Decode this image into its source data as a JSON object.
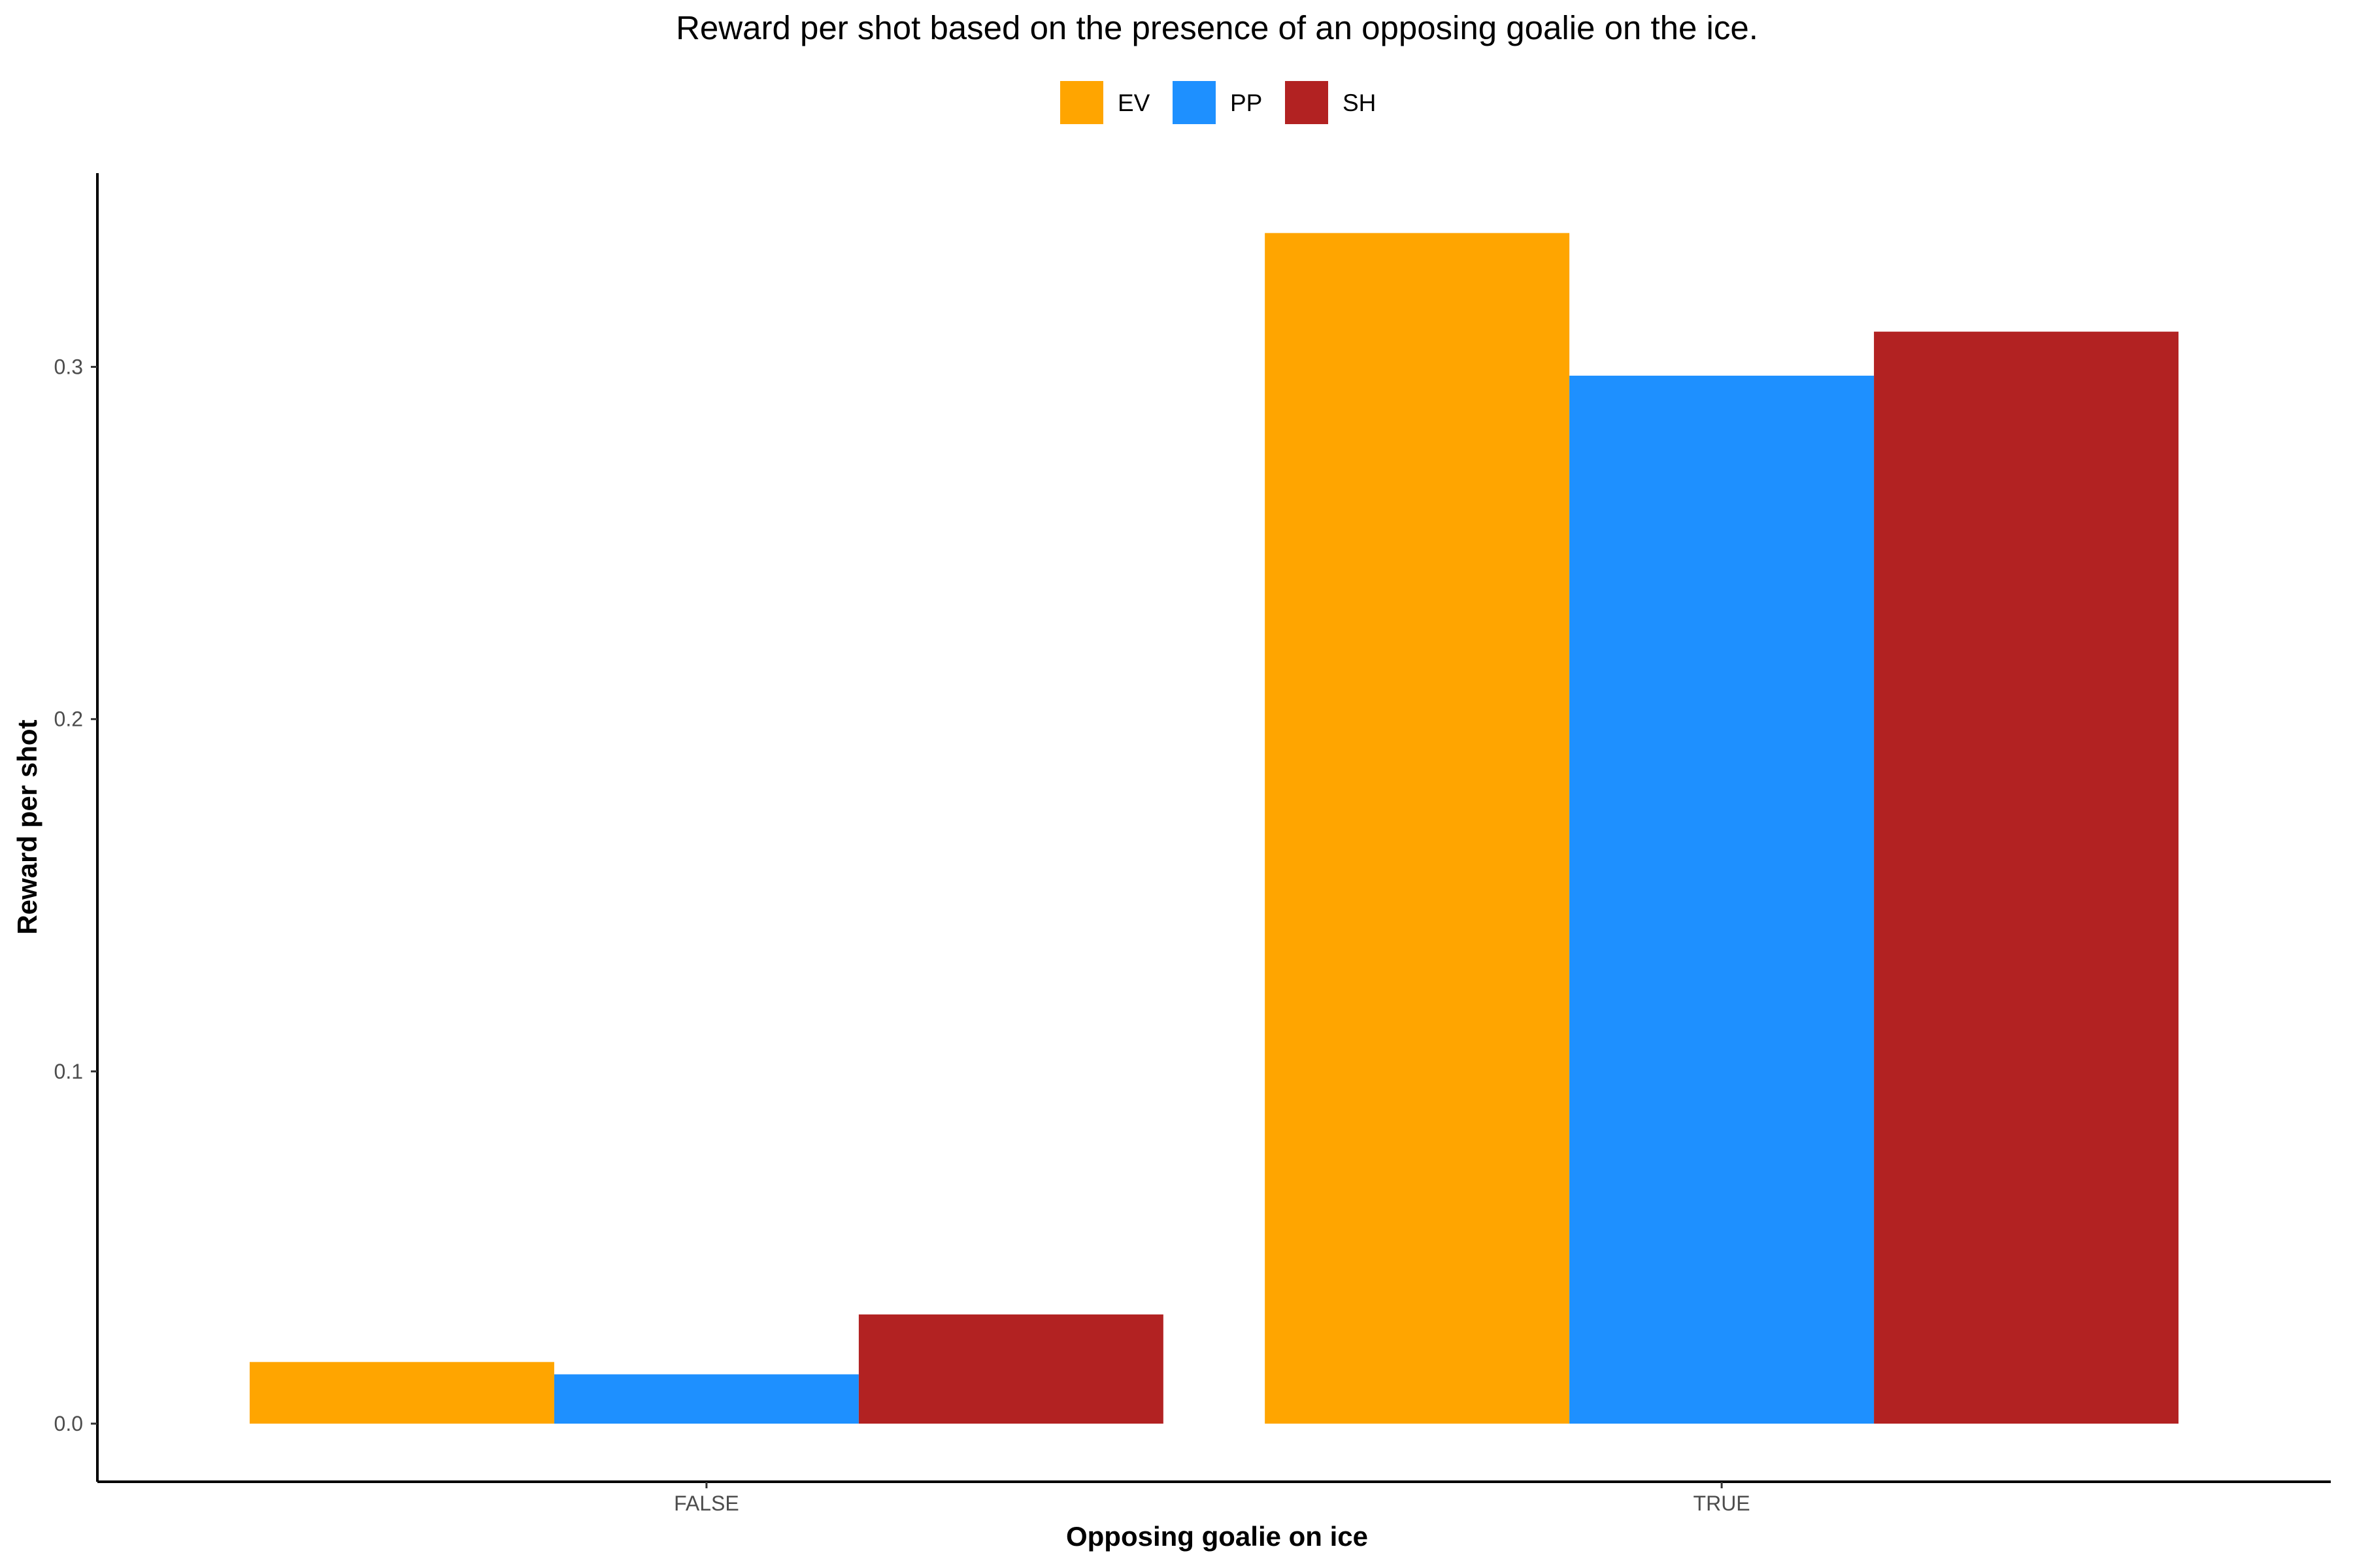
{
  "chart_data": {
    "type": "bar",
    "title": "Reward per shot based on the presence of an opposing goalie on the ice.",
    "xlabel": "Opposing goalie on ice",
    "ylabel": "Reward per shot",
    "categories": [
      "FALSE",
      "TRUE"
    ],
    "series": [
      {
        "name": "EV",
        "color": "#FFA500",
        "values": [
          0.0175,
          0.338
        ]
      },
      {
        "name": "PP",
        "color": "#1E90FF",
        "values": [
          0.014,
          0.2975
        ]
      },
      {
        "name": "SH",
        "color": "#B22222",
        "values": [
          0.031,
          0.31
        ]
      }
    ],
    "yticks": [
      "0.0",
      "0.1",
      "0.2",
      "0.3"
    ],
    "ytick_values": [
      0,
      0.1,
      0.2,
      0.3
    ],
    "ylim": [
      -0.0165,
      0.355
    ],
    "grid": false,
    "legend_position": "top"
  }
}
